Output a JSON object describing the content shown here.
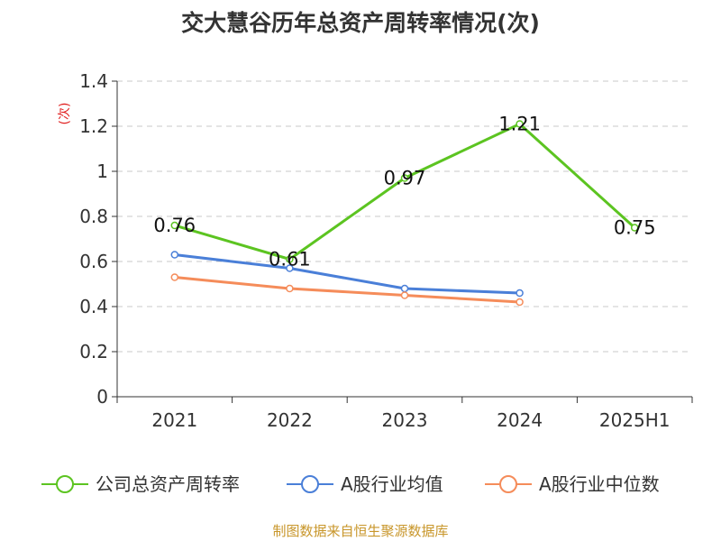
{
  "chart_data": {
    "type": "line",
    "title": "交大慧谷历年总资产周转率情况(次)",
    "ylabel": "(次)",
    "xlabel": "",
    "categories": [
      "2021",
      "2022",
      "2023",
      "2024",
      "2025H1"
    ],
    "ylim": [
      0,
      1.4
    ],
    "yticks": [
      "0",
      "0.2",
      "0.4",
      "0.6",
      "0.8",
      "1",
      "1.2",
      "1.4"
    ],
    "grid": true,
    "legend_position": "bottom",
    "series": [
      {
        "name": "公司总资产周转率",
        "color": "#5cc421",
        "values": [
          0.76,
          0.61,
          0.97,
          1.21,
          0.75
        ],
        "labels": [
          "0.76",
          "0.61",
          "0.97",
          "1.21",
          "0.75"
        ]
      },
      {
        "name": "A股行业均值",
        "color": "#4a7fd8",
        "values": [
          0.63,
          0.57,
          0.48,
          0.46,
          null
        ]
      },
      {
        "name": "A股行业中位数",
        "color": "#f58c5a",
        "values": [
          0.53,
          0.48,
          0.45,
          0.42,
          null
        ]
      }
    ]
  },
  "footer": {
    "source": "制图数据来自恒生聚源数据库"
  }
}
